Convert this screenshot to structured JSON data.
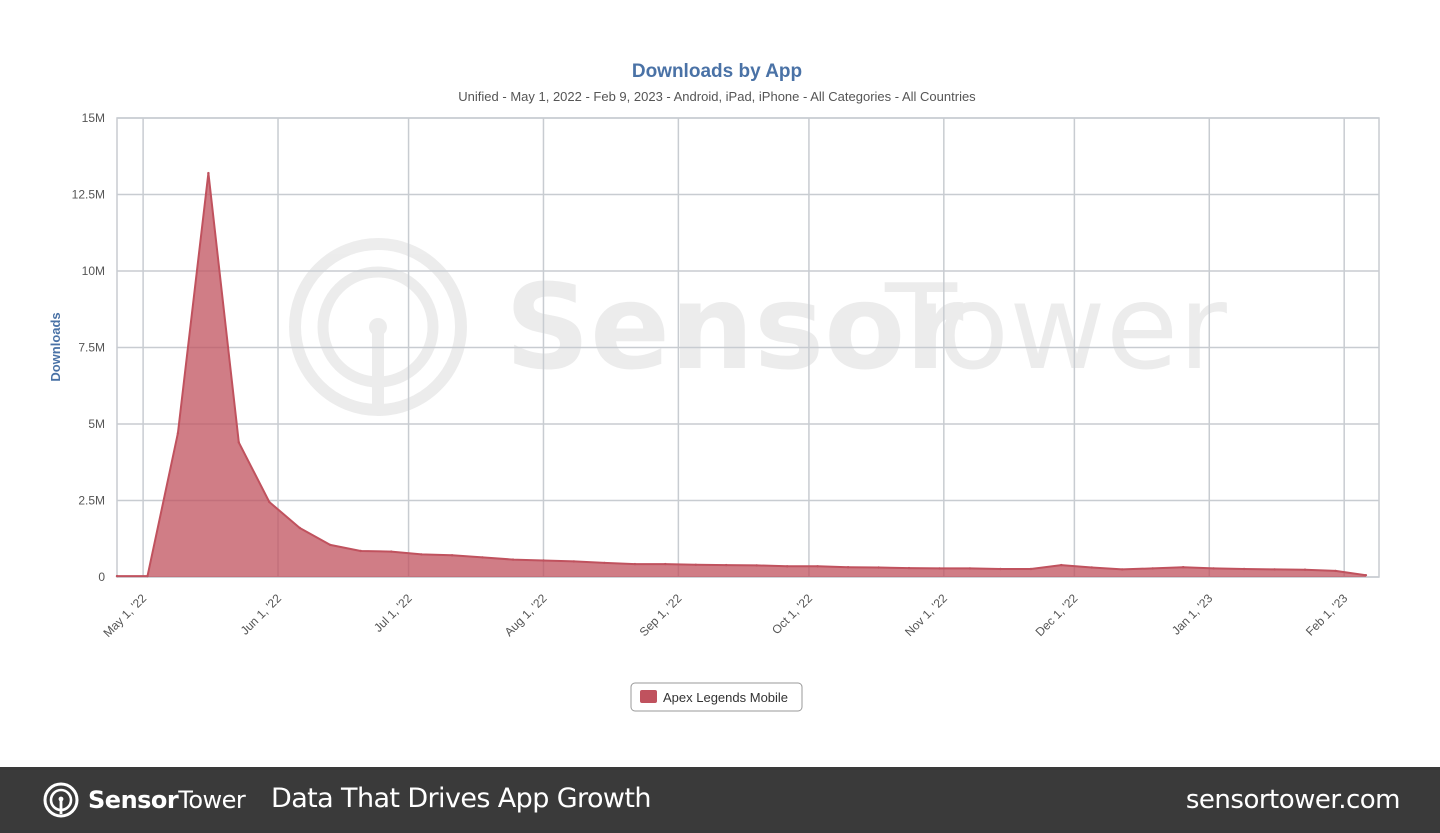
{
  "chart_data": {
    "type": "area",
    "title": "Downloads by App",
    "subtitle": "Unified - May 1, 2022 - Feb 9, 2023 - Android, iPad, iPhone - All Categories - All Countries",
    "xlabel": "",
    "ylabel": "Downloads",
    "ylim": [
      0,
      15000000
    ],
    "y_ticks": [
      {
        "value": 0,
        "label": "0"
      },
      {
        "value": 2500000,
        "label": "2.5M"
      },
      {
        "value": 5000000,
        "label": "5M"
      },
      {
        "value": 7500000,
        "label": "7.5M"
      },
      {
        "value": 10000000,
        "label": "10M"
      },
      {
        "value": 12500000,
        "label": "12.5M"
      },
      {
        "value": 15000000,
        "label": "15M"
      }
    ],
    "xlim": [
      "2022-04-25",
      "2023-02-09"
    ],
    "x_ticks": [
      {
        "date": "2022-05-01",
        "label": "May 1, '22"
      },
      {
        "date": "2022-06-01",
        "label": "Jun 1, '22"
      },
      {
        "date": "2022-07-01",
        "label": "Jul 1, '22"
      },
      {
        "date": "2022-08-01",
        "label": "Aug 1, '22"
      },
      {
        "date": "2022-09-01",
        "label": "Sep 1, '22"
      },
      {
        "date": "2022-10-01",
        "label": "Oct 1, '22"
      },
      {
        "date": "2022-11-01",
        "label": "Nov 1, '22"
      },
      {
        "date": "2022-12-01",
        "label": "Dec 1, '22"
      },
      {
        "date": "2023-01-01",
        "label": "Jan 1, '23"
      },
      {
        "date": "2023-02-01",
        "label": "Feb 1, '23"
      }
    ],
    "grid": true,
    "legend_position": "bottom-center",
    "series": [
      {
        "name": "Apex Legends Mobile",
        "color": "#c0525e",
        "points": [
          {
            "x": "2022-04-25",
            "y": 30000
          },
          {
            "x": "2022-05-02",
            "y": 30000
          },
          {
            "x": "2022-05-09",
            "y": 4700000
          },
          {
            "x": "2022-05-16",
            "y": 13200000
          },
          {
            "x": "2022-05-23",
            "y": 4400000
          },
          {
            "x": "2022-05-30",
            "y": 2450000
          },
          {
            "x": "2022-06-06",
            "y": 1600000
          },
          {
            "x": "2022-06-13",
            "y": 1050000
          },
          {
            "x": "2022-06-20",
            "y": 850000
          },
          {
            "x": "2022-06-27",
            "y": 830000
          },
          {
            "x": "2022-07-04",
            "y": 740000
          },
          {
            "x": "2022-07-11",
            "y": 710000
          },
          {
            "x": "2022-07-18",
            "y": 640000
          },
          {
            "x": "2022-07-25",
            "y": 570000
          },
          {
            "x": "2022-08-01",
            "y": 540000
          },
          {
            "x": "2022-08-08",
            "y": 510000
          },
          {
            "x": "2022-08-15",
            "y": 460000
          },
          {
            "x": "2022-08-22",
            "y": 420000
          },
          {
            "x": "2022-08-29",
            "y": 420000
          },
          {
            "x": "2022-09-05",
            "y": 400000
          },
          {
            "x": "2022-09-12",
            "y": 390000
          },
          {
            "x": "2022-09-19",
            "y": 380000
          },
          {
            "x": "2022-09-26",
            "y": 350000
          },
          {
            "x": "2022-10-03",
            "y": 350000
          },
          {
            "x": "2022-10-10",
            "y": 320000
          },
          {
            "x": "2022-10-17",
            "y": 310000
          },
          {
            "x": "2022-10-24",
            "y": 290000
          },
          {
            "x": "2022-10-31",
            "y": 280000
          },
          {
            "x": "2022-11-07",
            "y": 280000
          },
          {
            "x": "2022-11-14",
            "y": 260000
          },
          {
            "x": "2022-11-21",
            "y": 260000
          },
          {
            "x": "2022-11-28",
            "y": 390000
          },
          {
            "x": "2022-12-05",
            "y": 310000
          },
          {
            "x": "2022-12-12",
            "y": 250000
          },
          {
            "x": "2022-12-19",
            "y": 280000
          },
          {
            "x": "2022-12-26",
            "y": 320000
          },
          {
            "x": "2023-01-02",
            "y": 280000
          },
          {
            "x": "2023-01-09",
            "y": 260000
          },
          {
            "x": "2023-01-16",
            "y": 250000
          },
          {
            "x": "2023-01-23",
            "y": 240000
          },
          {
            "x": "2023-01-30",
            "y": 200000
          },
          {
            "x": "2023-02-06",
            "y": 60000
          }
        ]
      }
    ]
  },
  "watermark": {
    "text_bold": "Sensor",
    "text_light": "Tower"
  },
  "footer": {
    "brand_bold": "Sensor",
    "brand_light": "Tower",
    "tagline": "Data That Drives App Growth",
    "site": "sensortower.com",
    "background": "#3a3a3a"
  },
  "colors": {
    "title": "#4a72a6",
    "grid": "#c8ccd1",
    "axis_text": "#555555"
  }
}
